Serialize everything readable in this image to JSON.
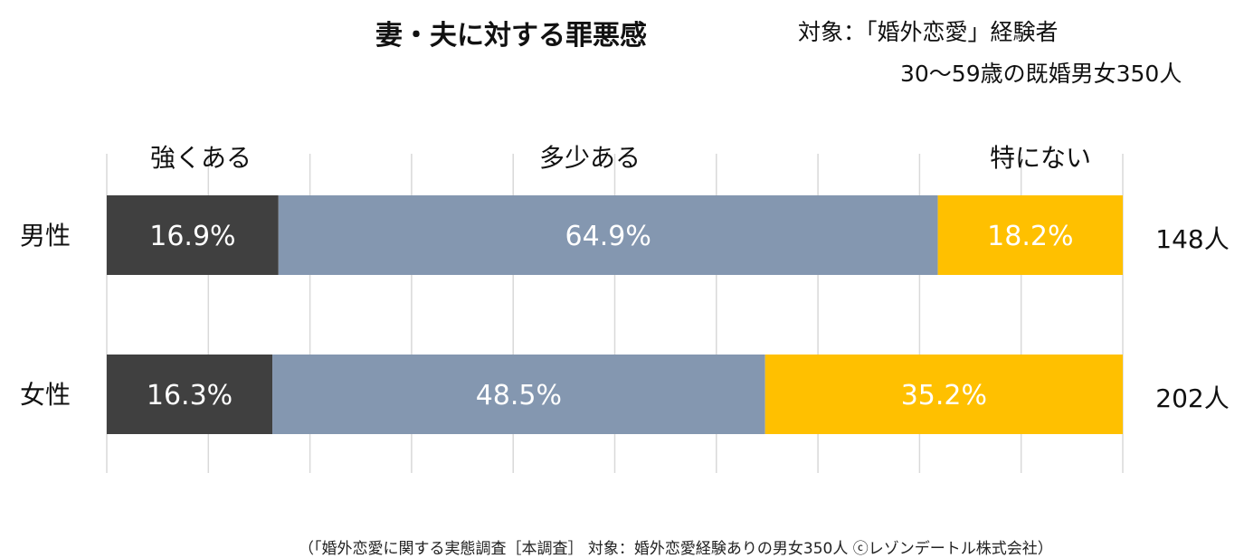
{
  "title": "妻・夫に対する罪悪感",
  "subject_line1": "対象：「婚外恋愛」経験者",
  "subject_line2": "30～59歳の既婚男女350人",
  "footnote": "（「婚外恋愛に関する実態調査［本調査］ 対象：婚外恋愛経験ありの男女350人 ⓒレゾンデートル株式会社）",
  "chart_data": {
    "type": "bar",
    "orientation": "horizontal",
    "stacked": "percent",
    "title": "妻・夫に対する罪悪感",
    "categories": [
      "男性",
      "女性"
    ],
    "counts": [
      "148人",
      "202人"
    ],
    "series": [
      {
        "name": "強くある",
        "values": [
          16.9,
          16.3
        ],
        "labels": [
          "16.9%",
          "16.3%"
        ],
        "color": "#404040"
      },
      {
        "name": "多少ある",
        "values": [
          64.9,
          48.5
        ],
        "labels": [
          "64.9%",
          "48.5%"
        ],
        "color": "#8497b0"
      },
      {
        "name": "特にない",
        "values": [
          18.2,
          35.2
        ],
        "labels": [
          "18.2%",
          "35.2%"
        ],
        "color": "#ffc000"
      }
    ],
    "xlim": [
      0,
      100
    ],
    "grid": true,
    "legend_position": "top"
  }
}
